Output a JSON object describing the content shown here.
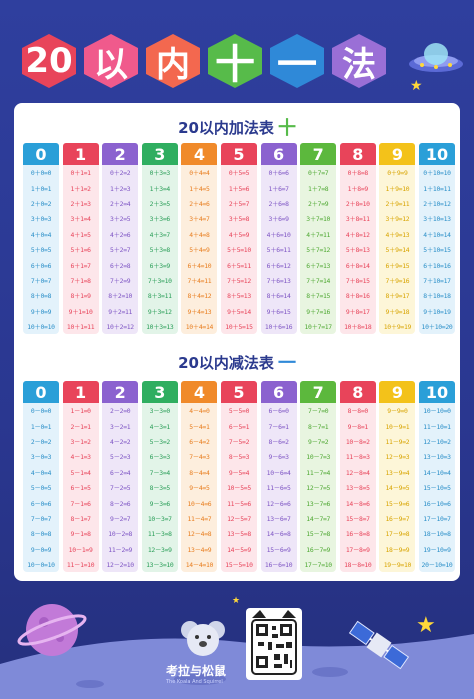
{
  "title": {
    "chars": [
      "20",
      "以",
      "内",
      "十",
      "一",
      "法"
    ],
    "colors": [
      "#e8445a",
      "#f05a8c",
      "#f3684f",
      "#57bb4a",
      "#2f89d8",
      "#9a6fd6"
    ]
  },
  "addition": {
    "title": "20以内加法表",
    "operator": "十",
    "headers": [
      "0",
      "1",
      "2",
      "3",
      "4",
      "5",
      "6",
      "7",
      "8",
      "9",
      "10"
    ],
    "rows": [
      [
        "0＋0=0",
        "0＋1=1",
        "0＋2=2",
        "0＋3=3",
        "0＋4=4",
        "0＋5=5",
        "0＋6=6",
        "0＋7=7",
        "0＋8=8",
        "0＋9=9",
        "0＋10=10"
      ],
      [
        "1＋0=1",
        "1＋1=2",
        "1＋2=3",
        "1＋3=4",
        "1＋4=5",
        "1＋5=6",
        "1＋6=7",
        "1＋7=8",
        "1＋8=9",
        "1＋9=10",
        "1＋10=11"
      ],
      [
        "2＋0=2",
        "2＋1=3",
        "2＋2=4",
        "2＋3=5",
        "2＋4=6",
        "2＋5=7",
        "2＋6=8",
        "2＋7=9",
        "2＋8=10",
        "2＋9=11",
        "2＋10=12"
      ],
      [
        "3＋0=3",
        "3＋1=4",
        "3＋2=5",
        "3＋3=6",
        "3＋4=7",
        "3＋5=8",
        "3＋6=9",
        "3＋7=10",
        "3＋8=11",
        "3＋9=12",
        "3＋10=13"
      ],
      [
        "4＋0=4",
        "4＋1=5",
        "4＋2=6",
        "4＋3=7",
        "4＋4=8",
        "4＋5=9",
        "4＋6=10",
        "4＋7=11",
        "4＋8=12",
        "4＋9=13",
        "4＋10=14"
      ],
      [
        "5＋0=5",
        "5＋1=6",
        "5＋2=7",
        "5＋3=8",
        "5＋4=9",
        "5＋5=10",
        "5＋6=11",
        "5＋7=12",
        "5＋8=13",
        "5＋9=14",
        "5＋10=15"
      ],
      [
        "6＋0=6",
        "6＋1=7",
        "6＋2=8",
        "6＋3=9",
        "6＋4=10",
        "6＋5=11",
        "6＋6=12",
        "6＋7=13",
        "6＋8=14",
        "6＋9=15",
        "6＋10=16"
      ],
      [
        "7＋0=7",
        "7＋1=8",
        "7＋2=9",
        "7＋3=10",
        "7＋4=11",
        "7＋5=12",
        "7＋6=13",
        "7＋7=14",
        "7＋8=15",
        "7＋9=16",
        "7＋10=17"
      ],
      [
        "8＋0=8",
        "8＋1=9",
        "8＋2=10",
        "8＋3=11",
        "8＋4=12",
        "8＋5=13",
        "8＋6=14",
        "8＋7=15",
        "8＋8=16",
        "8＋9=17",
        "8＋10=18"
      ],
      [
        "9＋0=9",
        "9＋1=10",
        "9＋2=11",
        "9＋3=12",
        "9＋4=13",
        "9＋5=14",
        "9＋6=15",
        "9＋7=16",
        "9＋8=17",
        "9＋9=18",
        "9＋10=19"
      ],
      [
        "10＋0=10",
        "10＋1=11",
        "10＋2=12",
        "10＋3=13",
        "10＋4=14",
        "10＋5=15",
        "10＋6=16",
        "10＋7=17",
        "10＋8=18",
        "10＋9=19",
        "10＋10=20"
      ]
    ]
  },
  "subtraction": {
    "title": "20以内减法表",
    "operator": "一",
    "headers": [
      "0",
      "1",
      "2",
      "3",
      "4",
      "5",
      "6",
      "7",
      "8",
      "9",
      "10"
    ],
    "rows": [
      [
        "0－0=0",
        "1－1=0",
        "2－2=0",
        "3－3=0",
        "4－4=0",
        "5－5=0",
        "6－6=0",
        "7－7=0",
        "8－8=0",
        "9－9=0",
        "10－10=0"
      ],
      [
        "1－0=1",
        "2－1=1",
        "3－2=1",
        "4－3=1",
        "5－4=1",
        "6－5=1",
        "7－6=1",
        "8－7=1",
        "9－8=1",
        "10－9=1",
        "11－10=1"
      ],
      [
        "2－0=2",
        "3－1=2",
        "4－2=2",
        "5－3=2",
        "6－4=2",
        "7－5=2",
        "8－6=2",
        "9－7=2",
        "10－8=2",
        "11－9=2",
        "12－10=2"
      ],
      [
        "3－0=3",
        "4－1=3",
        "5－2=3",
        "6－3=3",
        "7－4=3",
        "8－5=3",
        "9－6=3",
        "10－7=3",
        "11－8=3",
        "12－9=3",
        "13－10=3"
      ],
      [
        "4－0=4",
        "5－1=4",
        "6－2=4",
        "7－3=4",
        "8－4=4",
        "9－5=4",
        "10－6=4",
        "11－7=4",
        "12－8=4",
        "13－9=4",
        "14－10=4"
      ],
      [
        "5－0=5",
        "6－1=5",
        "7－2=5",
        "8－3=5",
        "9－4=5",
        "10－5=5",
        "11－6=5",
        "12－7=5",
        "13－8=5",
        "14－9=5",
        "15－10=5"
      ],
      [
        "6－0=6",
        "7－1=6",
        "8－2=6",
        "9－3=6",
        "10－4=6",
        "11－5=6",
        "12－6=6",
        "13－7=6",
        "14－8=6",
        "15－9=6",
        "16－10=6"
      ],
      [
        "7－0=7",
        "8－1=7",
        "9－2=7",
        "10－3=7",
        "11－4=7",
        "12－5=7",
        "13－6=7",
        "14－7=7",
        "15－8=7",
        "16－9=7",
        "17－10=7"
      ],
      [
        "8－0=8",
        "9－1=8",
        "10－2=8",
        "11－3=8",
        "12－4=8",
        "13－5=8",
        "14－6=8",
        "15－7=8",
        "16－8=8",
        "17－9=8",
        "18－10=8"
      ],
      [
        "9－0=9",
        "10－1=9",
        "11－2=9",
        "12－3=9",
        "13－4=9",
        "14－5=9",
        "15－6=9",
        "16－7=9",
        "17－8=9",
        "18－9=9",
        "19－10=9"
      ],
      [
        "10－0=10",
        "11－1=10",
        "12－2=10",
        "13－3=10",
        "14－4=10",
        "15－5=10",
        "16－6=10",
        "17－7=10",
        "18－8=10",
        "19－9=10",
        "20－10=10"
      ]
    ]
  },
  "column_colors": {
    "header": [
      "#2a9fd8",
      "#e8445a",
      "#8b62cf",
      "#2fae60",
      "#f08a2a",
      "#e8445a",
      "#8b62cf",
      "#5cb83d",
      "#e8445a",
      "#f3c21a",
      "#2a9fd8"
    ],
    "body": [
      "#e3f2fb",
      "#fde6ea",
      "#eee6f8",
      "#e2f4e8",
      "#fdeedd",
      "#fde6ea",
      "#eee6f8",
      "#e8f5e0",
      "#fde6ea",
      "#fdf6d8",
      "#e3f2fb"
    ],
    "text": [
      "#2a8fc8",
      "#e8445a",
      "#7e55c4",
      "#2a9e58",
      "#e87d1e",
      "#e8445a",
      "#7e55c4",
      "#4ea832",
      "#e8445a",
      "#d8a400",
      "#2a8fc8"
    ]
  },
  "brand": {
    "name": "考拉与松鼠",
    "subtitle": "The Koala And Squirrel"
  },
  "icons": {
    "ufo": "ufo-icon",
    "planet": "planet-icon",
    "satellite": "satellite-icon",
    "star": "star-icon",
    "koala": "koala-logo-icon",
    "qr": "qr-code-icon"
  }
}
